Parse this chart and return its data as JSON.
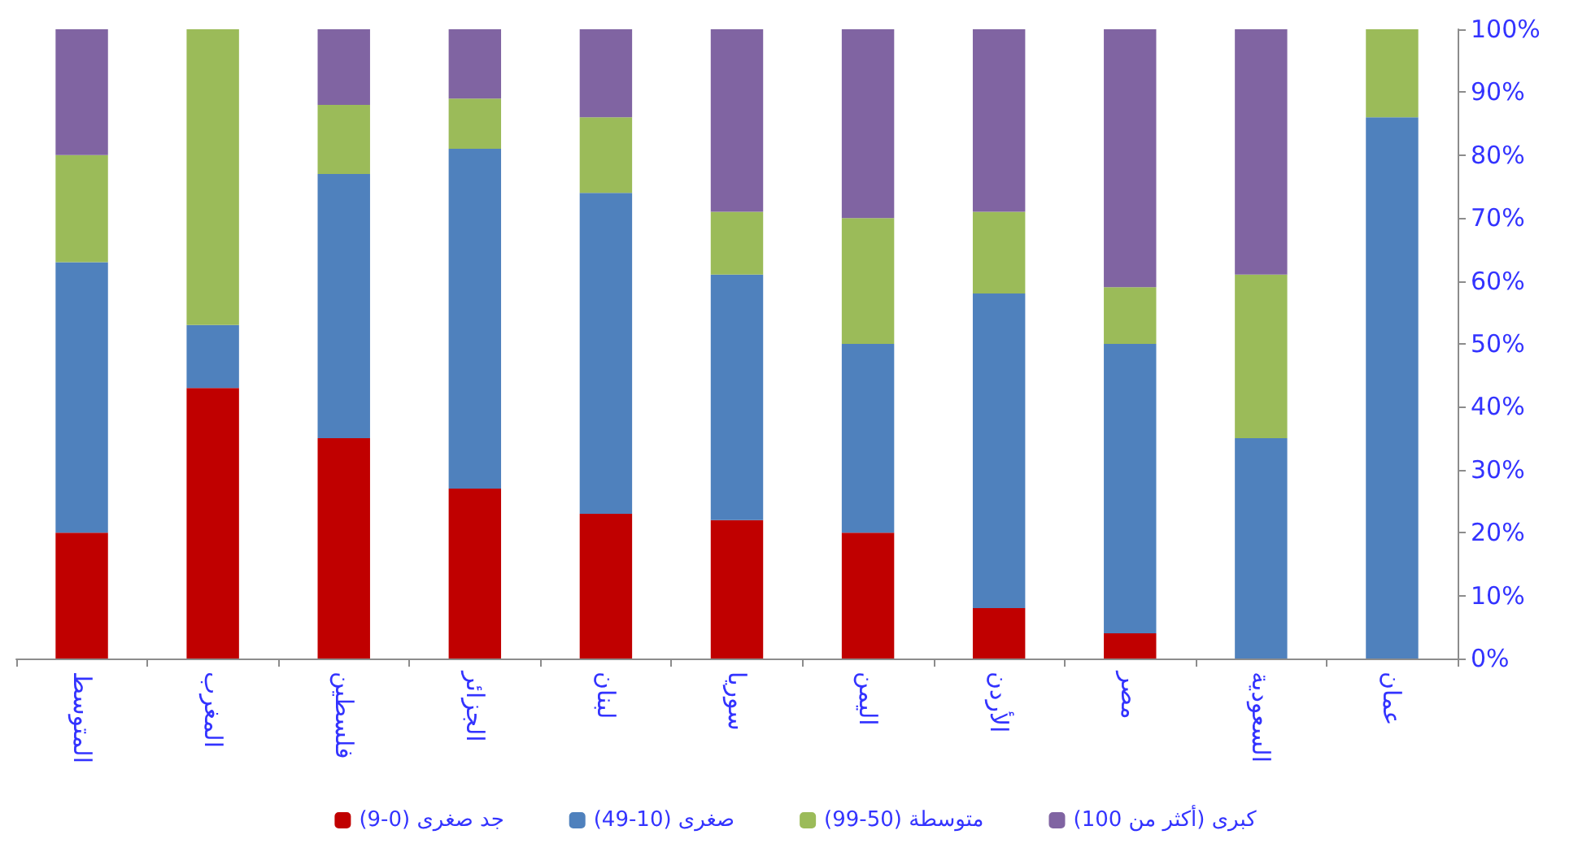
{
  "chart_data": {
    "type": "bar",
    "stacked": true,
    "categories": [
      "المتوسط",
      "المغرب",
      "فلسطين",
      "الجزائر",
      "لبنان",
      "سوريا",
      "اليمن",
      "الأردن",
      "مصر",
      "السعودية",
      "عمان"
    ],
    "series": [
      {
        "name": "جد صغرى (0-9)",
        "color": "#c00000",
        "values": [
          20,
          43,
          35,
          27,
          23,
          22,
          20,
          8,
          4,
          0,
          0
        ]
      },
      {
        "name": "صغرى (10-49)",
        "color": "#4f81bd",
        "values": [
          43,
          10,
          42,
          54,
          51,
          39,
          30,
          50,
          46,
          35,
          86
        ]
      },
      {
        "name": "متوسطة (50-99)",
        "color": "#9bbb59",
        "values": [
          17,
          47,
          11,
          8,
          12,
          10,
          20,
          13,
          9,
          26,
          14
        ]
      },
      {
        "name": "كبرى (أكثر من 100)",
        "color": "#8064a2",
        "values": [
          20,
          0,
          12,
          11,
          14,
          29,
          30,
          29,
          41,
          39,
          0
        ]
      }
    ],
    "ylim": [
      0,
      100
    ],
    "yticks": [
      {
        "value": 0,
        "label": "0%"
      },
      {
        "value": 10,
        "label": "10%"
      },
      {
        "value": 20,
        "label": "20%"
      },
      {
        "value": 30,
        "label": "30%"
      },
      {
        "value": 40,
        "label": "40%"
      },
      {
        "value": 50,
        "label": "50%"
      },
      {
        "value": 60,
        "label": "60%"
      },
      {
        "value": 70,
        "label": "70%"
      },
      {
        "value": 80,
        "label": "80%"
      },
      {
        "value": 90,
        "label": "90%"
      },
      {
        "value": 100,
        "label": "100%"
      }
    ],
    "grid": false,
    "legend": "bottom"
  }
}
